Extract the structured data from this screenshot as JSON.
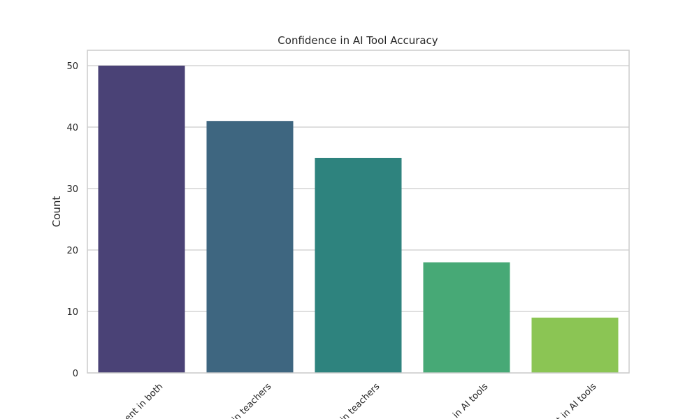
{
  "chart_data": {
    "type": "bar",
    "title": "Confidence in AI Tool Accuracy",
    "xlabel": "",
    "ylabel": "Count",
    "categories": [
      "Confident in both",
      "More confident in teachers",
      "Only confident in teachers",
      "More confident in AI tools",
      "Only confident in AI tools"
    ],
    "visible_tick_labels": [
      "ent in both",
      "in teachers",
      "in teachers",
      "in AI tools",
      "t in AI tools"
    ],
    "values": [
      50,
      41,
      35,
      18,
      9
    ],
    "colors": [
      "#4a4276",
      "#3e6680",
      "#2e837e",
      "#47a976",
      "#8bc554"
    ],
    "ylim": [
      0,
      52.5
    ],
    "yticks": [
      0,
      10,
      20,
      30,
      40,
      50
    ],
    "grid": true,
    "x_tick_rotation": -45
  }
}
